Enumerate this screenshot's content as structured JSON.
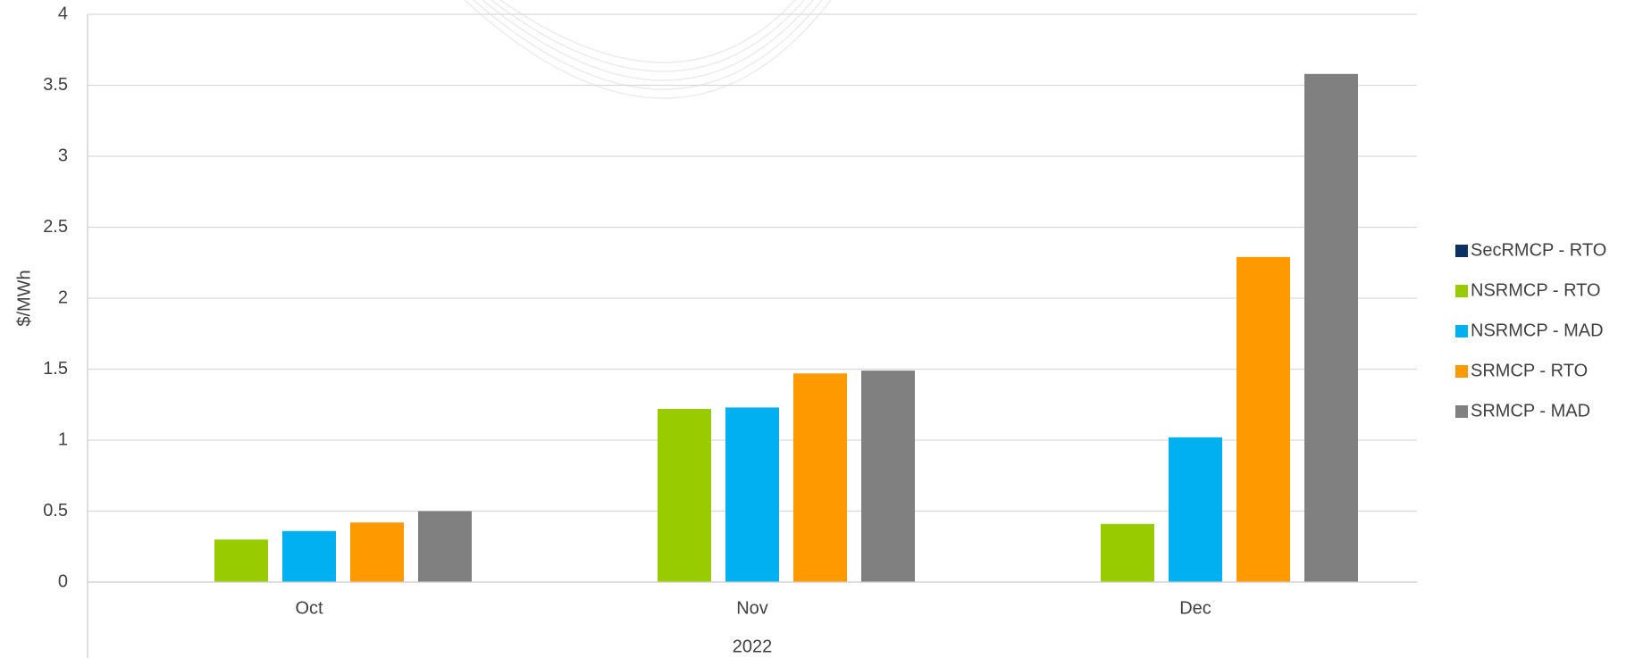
{
  "chart_data": {
    "type": "bar",
    "y_label": "$/MWh",
    "group_label": "2022",
    "categories": [
      "Oct",
      "Nov",
      "Dec"
    ],
    "series": [
      {
        "name": "SecRMCP - RTO",
        "color": "#0a3161",
        "values": [
          0,
          0,
          0
        ]
      },
      {
        "name": "NSRMCP - RTO",
        "color": "#99cc00",
        "values": [
          0.3,
          1.22,
          0.41
        ]
      },
      {
        "name": "NSRMCP - MAD",
        "color": "#00b0f0",
        "values": [
          0.36,
          1.23,
          1.02
        ]
      },
      {
        "name": "SRMCP - RTO",
        "color": "#ff9900",
        "values": [
          0.42,
          1.47,
          2.29
        ]
      },
      {
        "name": "SRMCP - MAD",
        "color": "#808080",
        "values": [
          0.5,
          1.49,
          3.58
        ]
      }
    ],
    "ylim": [
      0,
      4
    ],
    "yticks": [
      0,
      0.5,
      1,
      1.5,
      2,
      2.5,
      3,
      3.5,
      4
    ],
    "grid": true,
    "legend": "right"
  }
}
